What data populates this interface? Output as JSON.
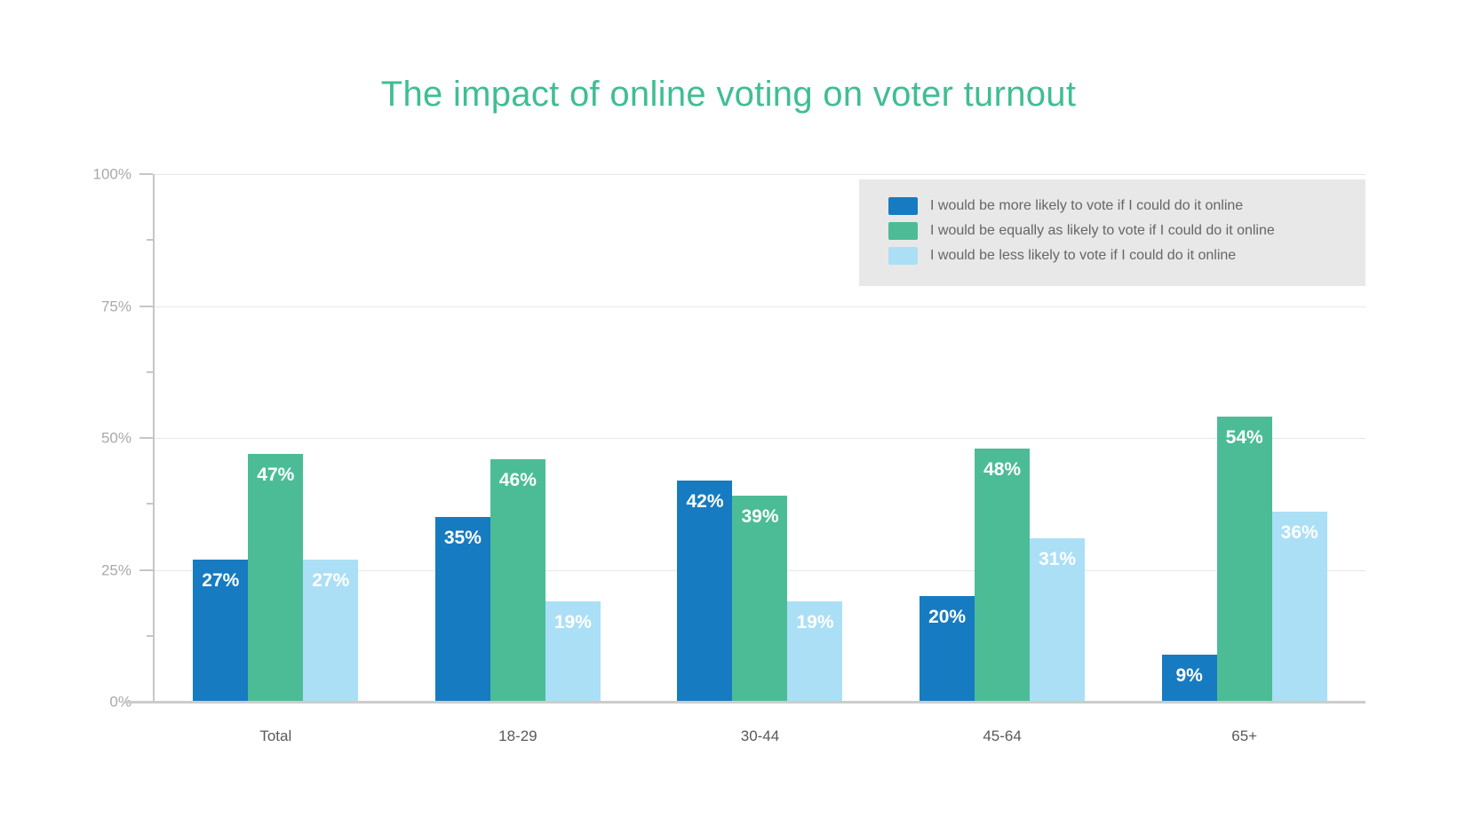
{
  "chart_data": {
    "type": "bar",
    "title": "The impact of online voting on voter turnout",
    "categories": [
      "Total",
      "18-29",
      "30-44",
      "45-64",
      "65+"
    ],
    "series": [
      {
        "name": "I would be more likely to vote if I could do it online",
        "color": "#177bc1",
        "values": [
          27,
          35,
          42,
          20,
          9
        ]
      },
      {
        "name": "I would be equally as likely to vote if I could do it online",
        "color": "#4cbc97",
        "values": [
          47,
          46,
          39,
          48,
          54
        ]
      },
      {
        "name": "I would be less likely to vote if I could do it online",
        "color": "#abdff6",
        "values": [
          27,
          19,
          19,
          31,
          36
        ]
      }
    ],
    "value_suffix": "%",
    "ylim": [
      0,
      100
    ],
    "y_major_ticks_percent": [
      100,
      75,
      50,
      25,
      0
    ],
    "y_minor_ticks_percent": [
      87.5,
      62.5,
      37.5,
      12.5
    ],
    "grid": true,
    "legend_position": "top-right",
    "bar_value_labels_inside": true
  },
  "axis": {
    "y_labels_top_down": [
      "100%",
      "75%",
      "50%",
      "25%",
      "0%"
    ]
  },
  "colors": {
    "title": "#3fbe92",
    "bar_label_text": "#ffffff",
    "legend_bg": "#e8e8e8",
    "legend_text": "#666666",
    "y_label_text": "#a9a9a9",
    "x_label_text": "#595959",
    "gridline": "#e7e7e7",
    "axis_line": "#c6c6c6",
    "baseline": "#cccccc"
  }
}
